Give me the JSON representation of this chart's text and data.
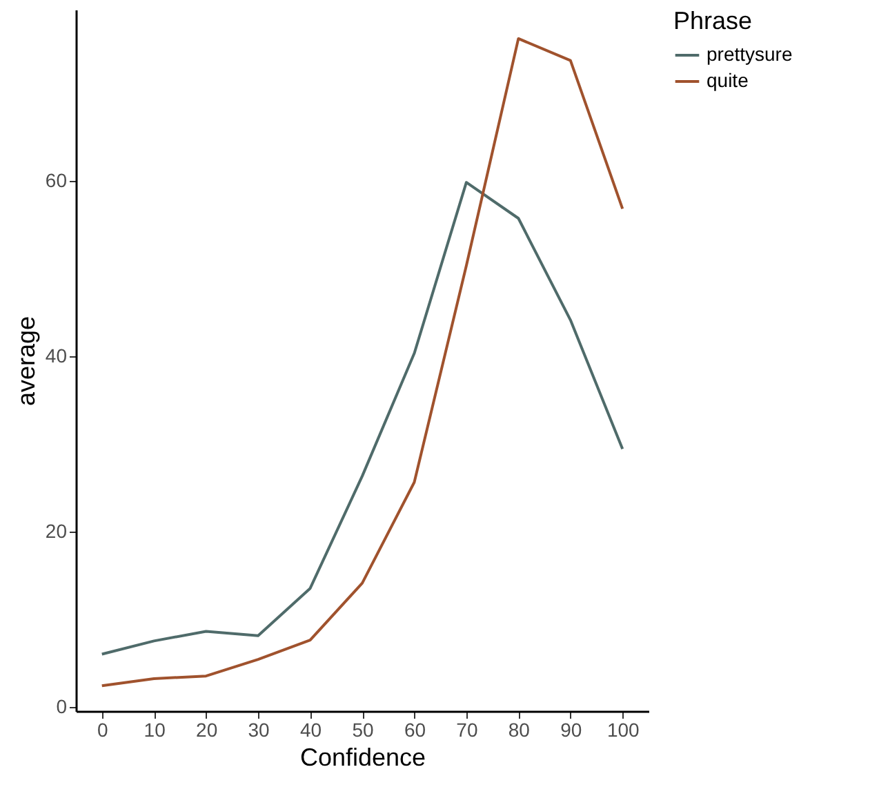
{
  "chart_data": {
    "type": "line",
    "xlabel": "Confidence",
    "ylabel": "average",
    "legend_title": "Phrase",
    "legend": "right",
    "grid": false,
    "marker": "none",
    "line_style": "solid",
    "x": [
      0,
      10,
      20,
      30,
      40,
      50,
      60,
      70,
      80,
      90,
      100
    ],
    "xlim": [
      -5,
      105
    ],
    "xticks": [
      0,
      10,
      20,
      30,
      40,
      50,
      60,
      70,
      80,
      90,
      100
    ],
    "ylim": [
      -0.5,
      79.5
    ],
    "yticks": [
      0,
      20,
      40,
      60
    ],
    "series": [
      {
        "name": "prettysure",
        "color": "#4f6b6a",
        "values": [
          6.0,
          7.5,
          8.6,
          8.1,
          13.5,
          26.3,
          40.3,
          59.8,
          55.7,
          44.1,
          29.4
        ]
      },
      {
        "name": "quite",
        "color": "#a0522d",
        "values": [
          2.4,
          3.2,
          3.5,
          5.4,
          7.6,
          14.1,
          25.6,
          50.3,
          76.2,
          73.7,
          56.8
        ]
      }
    ]
  }
}
